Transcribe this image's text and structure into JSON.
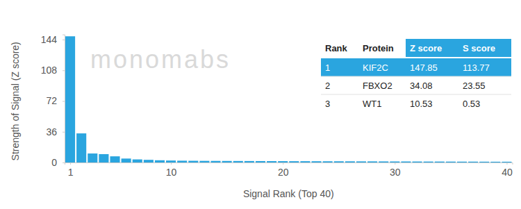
{
  "chart_data": {
    "type": "bar",
    "x_label": "Signal Rank (Top 40)",
    "y_label": "Strength of Signal (Z score)",
    "x": [
      1,
      2,
      3,
      4,
      5,
      6,
      7,
      8,
      9,
      10,
      11,
      12,
      13,
      14,
      15,
      16,
      17,
      18,
      19,
      20,
      21,
      22,
      23,
      24,
      25,
      26,
      27,
      28,
      29,
      30,
      31,
      32,
      33,
      34,
      35,
      36,
      37,
      38,
      39,
      40
    ],
    "values": [
      147.85,
      34.08,
      10.53,
      9.8,
      7.2,
      4.6,
      3.6,
      3.1,
      2.6,
      2.3,
      2.1,
      2.0,
      1.9,
      1.85,
      1.8,
      1.75,
      1.7,
      1.65,
      1.6,
      1.55,
      1.5,
      1.5,
      1.45,
      1.4,
      1.4,
      1.35,
      1.3,
      1.3,
      1.25,
      1.2,
      1.2,
      1.15,
      1.1,
      1.1,
      1.05,
      1.0,
      1.0,
      0.95,
      0.9,
      0.9
    ],
    "color": "#2aa5df",
    "xlim": [
      0.5,
      40.5
    ],
    "xticks": [
      1,
      10,
      20,
      30,
      40
    ],
    "ylim": [
      0,
      150
    ],
    "yticks": [
      0,
      36,
      72,
      108,
      144
    ],
    "grid": false
  },
  "watermark": "monomabs",
  "table": {
    "columns": [
      "Rank",
      "Protein",
      "Z score",
      "S score"
    ],
    "rows": [
      [
        1,
        "KIF2C",
        147.85,
        113.77
      ],
      [
        2,
        "FBXO2",
        34.08,
        23.55
      ],
      [
        3,
        "WT1",
        10.53,
        0.53
      ]
    ]
  }
}
